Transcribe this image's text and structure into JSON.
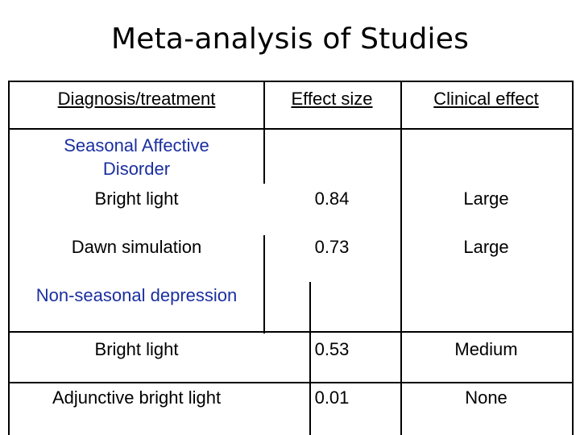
{
  "title": "Meta-analysis of Studies",
  "table": {
    "headers": [
      "Diagnosis/treatment",
      "Effect size",
      "Clinical effect"
    ],
    "sections": [
      {
        "heading": "Seasonal Affective Disorder",
        "rows": [
          {
            "treatment": "Bright light",
            "effect_size": "0.84",
            "clinical_effect": "Large"
          },
          {
            "treatment": "Dawn simulation",
            "effect_size": "0.73",
            "clinical_effect": "Large"
          }
        ]
      },
      {
        "heading": "Non-seasonal depression",
        "rows": [
          {
            "treatment": "Bright light",
            "effect_size": "0.53",
            "clinical_effect": "Medium"
          },
          {
            "treatment": "Adjunctive bright light",
            "effect_size": "0.01",
            "clinical_effect": "None"
          }
        ]
      }
    ]
  },
  "colors": {
    "section_heading": "#1a2fa0",
    "text": "#000000"
  }
}
